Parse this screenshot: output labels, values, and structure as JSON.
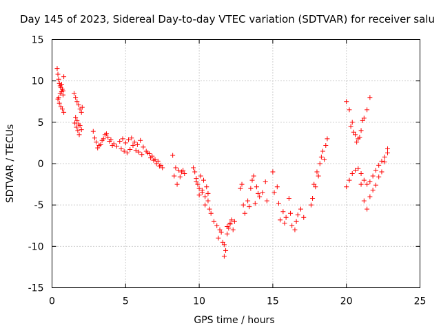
{
  "chart_data": {
    "type": "scatter",
    "title": "Day 145 of 2023, Sidereal Day-to-day VTEC variation (SDTVAR) for receiver salu",
    "xlabel": "GPS time / hours",
    "ylabel": "SDTVAR / TECUs",
    "xlim": [
      0,
      25
    ],
    "ylim": [
      -15,
      15
    ],
    "xticks": [
      0,
      5,
      10,
      15,
      20,
      25
    ],
    "yticks": [
      -15,
      -10,
      -5,
      0,
      5,
      10,
      15
    ],
    "xtick_labels": [
      "0",
      "5",
      "10",
      "15",
      "20",
      "25"
    ],
    "ytick_labels": [
      "-15",
      "-10",
      "-5",
      "0",
      "5",
      "10",
      "15"
    ],
    "grid": true,
    "marker": "+",
    "color": "#ff0000",
    "series": [
      {
        "name": "SDTVAR",
        "x": [
          0.35,
          0.4,
          0.45,
          0.5,
          0.55,
          0.6,
          0.65,
          0.7,
          0.75,
          0.8,
          0.4,
          0.5,
          0.6,
          0.7,
          0.8,
          0.45,
          0.55,
          0.65,
          0.75,
          1.5,
          1.6,
          1.7,
          1.8,
          1.9,
          2.0,
          2.05,
          1.55,
          1.65,
          1.75,
          1.85,
          1.6,
          1.7,
          1.8,
          1.9,
          2.0,
          2.8,
          2.9,
          3.0,
          3.2,
          3.4,
          3.6,
          3.8,
          4.0,
          4.2,
          4.4,
          3.1,
          3.3,
          3.5,
          3.7,
          3.9,
          4.1,
          4.6,
          4.8,
          5.0,
          5.2,
          5.4,
          5.6,
          5.8,
          6.0,
          6.2,
          4.7,
          4.9,
          5.1,
          5.3,
          5.5,
          5.7,
          5.9,
          6.1,
          6.4,
          6.6,
          6.8,
          7.0,
          7.2,
          7.4,
          7.5,
          6.5,
          6.7,
          6.9,
          7.1,
          7.3,
          8.2,
          8.4,
          8.6,
          8.8,
          9.0,
          8.3,
          8.5,
          8.7,
          8.9,
          9.6,
          9.7,
          9.8,
          9.9,
          10.0,
          10.1,
          10.2,
          10.3,
          10.4,
          10.5,
          10.6,
          10.7,
          10.8,
          9.8,
          10.0,
          10.2,
          10.4,
          10.6,
          11.0,
          11.2,
          11.4,
          11.6,
          11.7,
          11.8,
          11.9,
          12.0,
          12.1,
          12.2,
          12.3,
          12.4,
          11.3,
          11.5,
          11.7,
          11.9,
          12.1,
          12.8,
          12.9,
          13.0,
          13.1,
          13.3,
          13.5,
          13.7,
          13.9,
          14.1,
          14.3,
          14.5,
          14.6,
          13.4,
          13.6,
          13.8,
          14.0,
          15.0,
          15.1,
          15.3,
          15.5,
          15.7,
          15.9,
          16.1,
          16.3,
          16.5,
          16.7,
          16.9,
          17.1,
          15.4,
          15.8,
          16.2,
          16.6,
          17.6,
          17.8,
          18.0,
          18.2,
          18.4,
          18.6,
          18.7,
          17.7,
          17.9,
          18.1,
          18.3,
          18.5,
          20.0,
          20.2,
          20.4,
          20.6,
          20.8,
          21.0,
          21.2,
          21.4,
          21.6,
          20.3,
          20.5,
          20.7,
          20.9,
          21.1,
          20.0,
          20.2,
          20.4,
          20.6,
          20.8,
          21.0,
          21.2,
          21.4,
          21.6,
          21.8,
          22.0,
          22.2,
          22.4,
          22.6,
          22.8,
          21.0,
          21.2,
          21.4,
          21.6,
          21.8,
          22.0,
          22.2,
          22.4,
          22.6,
          22.8
        ],
        "y": [
          11.5,
          10.8,
          10.2,
          9.7,
          9.4,
          9.2,
          9.6,
          9.0,
          8.8,
          10.5,
          7.8,
          7.3,
          6.9,
          6.6,
          6.2,
          8.0,
          8.5,
          8.7,
          8.3,
          8.5,
          8.0,
          7.5,
          7.1,
          6.6,
          6.2,
          6.8,
          4.9,
          4.4,
          4.0,
          3.5,
          5.6,
          5.2,
          4.8,
          4.6,
          4.1,
          3.9,
          3.1,
          2.6,
          2.2,
          2.8,
          3.5,
          3.2,
          2.9,
          2.4,
          2.1,
          1.9,
          2.3,
          3.0,
          3.6,
          2.7,
          2.2,
          2.7,
          3.0,
          2.5,
          2.9,
          3.1,
          2.6,
          2.3,
          2.8,
          2.0,
          1.8,
          1.5,
          1.3,
          1.7,
          2.2,
          1.6,
          1.4,
          1.1,
          1.5,
          1.2,
          0.9,
          0.5,
          0.3,
          -0.2,
          -0.5,
          1.3,
          0.7,
          0.4,
          0.0,
          -0.3,
          1.0,
          -0.5,
          -0.8,
          -1.0,
          -1.2,
          -1.5,
          -2.5,
          -1.6,
          -0.8,
          -0.5,
          -1.0,
          -1.8,
          -2.5,
          -3.0,
          -1.5,
          -3.5,
          -2.0,
          -4.0,
          -2.8,
          -4.5,
          -5.5,
          -6.0,
          -2.2,
          -3.8,
          -3.2,
          -5.0,
          -3.6,
          -7.0,
          -7.5,
          -8.0,
          -9.5,
          -11.2,
          -10.5,
          -8.5,
          -7.8,
          -7.2,
          -6.8,
          -8.0,
          -7.0,
          -9.0,
          -8.3,
          -9.8,
          -7.6,
          -7.3,
          -3.0,
          -2.5,
          -5.0,
          -6.0,
          -4.5,
          -3.0,
          -1.5,
          -2.8,
          -4.0,
          -3.5,
          -2.2,
          -4.5,
          -5.2,
          -2.0,
          -4.8,
          -3.6,
          -1.0,
          -3.5,
          -2.8,
          -6.8,
          -5.8,
          -6.5,
          -4.2,
          -7.5,
          -8.0,
          -6.2,
          -5.5,
          -6.5,
          -4.8,
          -7.2,
          -6.0,
          -7.0,
          -5.0,
          -2.5,
          -1.0,
          0.0,
          1.5,
          2.2,
          3.0,
          -4.2,
          -2.8,
          -1.5,
          0.8,
          0.5,
          7.5,
          6.5,
          5.0,
          3.5,
          3.0,
          4.0,
          5.5,
          6.5,
          8.0,
          4.5,
          3.8,
          2.6,
          3.2,
          5.2,
          -2.8,
          -2.0,
          -1.2,
          -0.8,
          -0.6,
          -1.2,
          -2.0,
          -2.5,
          -2.2,
          -1.5,
          -0.8,
          -0.2,
          0.3,
          0.8,
          1.3,
          -2.5,
          -4.5,
          -5.5,
          -4.0,
          -3.2,
          -2.6,
          -1.6,
          -1.0,
          0.2,
          1.8
        ]
      }
    ]
  }
}
